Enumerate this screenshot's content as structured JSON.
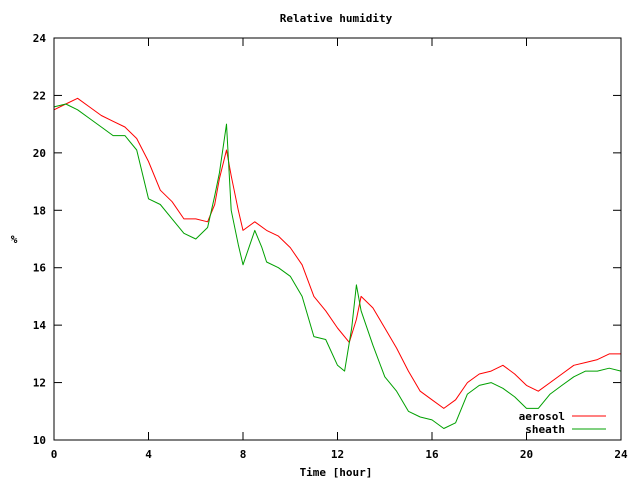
{
  "chart_data": {
    "type": "line",
    "title": "Relative humidity",
    "xlabel": "Time [hour]",
    "ylabel": "%",
    "xlim": [
      0,
      24
    ],
    "ylim": [
      10,
      24
    ],
    "x_ticks": [
      0,
      4,
      8,
      12,
      16,
      20,
      24
    ],
    "y_ticks": [
      10,
      12,
      14,
      16,
      18,
      20,
      22,
      24
    ],
    "grid": false,
    "legend_position": "bottom-right",
    "series": [
      {
        "name": "aerosol",
        "color": "#ff0000",
        "x": [
          0,
          0.5,
          1,
          1.5,
          2,
          2.5,
          3,
          3.5,
          4,
          4.5,
          5,
          5.5,
          6,
          6.5,
          6.8,
          7,
          7.3,
          7.5,
          7.8,
          8,
          8.5,
          9,
          9.5,
          10,
          10.5,
          11,
          11.5,
          12,
          12.5,
          12.8,
          13,
          13.5,
          14,
          14.5,
          15,
          15.5,
          16,
          16.5,
          17,
          17.5,
          18,
          18.5,
          19,
          19.5,
          20,
          20.5,
          21,
          21.5,
          22,
          22.5,
          23,
          23.5,
          24
        ],
        "y": [
          21.5,
          21.7,
          21.9,
          21.6,
          21.3,
          21.1,
          20.9,
          20.5,
          19.7,
          18.7,
          18.3,
          17.7,
          17.7,
          17.6,
          18.2,
          19.1,
          20.1,
          19.2,
          18.0,
          17.3,
          17.6,
          17.3,
          17.1,
          16.7,
          16.1,
          15.0,
          14.5,
          13.9,
          13.4,
          14.2,
          15.0,
          14.6,
          13.9,
          13.2,
          12.4,
          11.7,
          11.4,
          11.1,
          11.4,
          12.0,
          12.3,
          12.4,
          12.6,
          12.3,
          11.9,
          11.7,
          12.0,
          12.3,
          12.6,
          12.7,
          12.8,
          13.0,
          13.0
        ]
      },
      {
        "name": "sheath",
        "color": "#00a000",
        "x": [
          0,
          0.5,
          1,
          1.5,
          2,
          2.5,
          3,
          3.5,
          4,
          4.5,
          5,
          5.5,
          6,
          6.5,
          6.8,
          7,
          7.3,
          7.5,
          7.8,
          8,
          8.5,
          8.8,
          9,
          9.5,
          10,
          10.5,
          11,
          11.5,
          12,
          12.3,
          12.6,
          12.8,
          13,
          13.5,
          14,
          14.5,
          15,
          15.5,
          16,
          16.5,
          17,
          17.5,
          18,
          18.5,
          19,
          19.5,
          20,
          20.5,
          21,
          21.5,
          22,
          22.5,
          23,
          23.5,
          24
        ],
        "y": [
          21.6,
          21.7,
          21.5,
          21.2,
          20.9,
          20.6,
          20.6,
          20.1,
          18.4,
          18.2,
          17.7,
          17.2,
          17.0,
          17.4,
          18.5,
          19.3,
          21.0,
          18.0,
          16.8,
          16.1,
          17.3,
          16.7,
          16.2,
          16.0,
          15.7,
          15.0,
          13.6,
          13.5,
          12.6,
          12.4,
          13.9,
          15.4,
          14.5,
          13.3,
          12.2,
          11.7,
          11.0,
          10.8,
          10.7,
          10.4,
          10.6,
          11.6,
          11.9,
          12.0,
          11.8,
          11.5,
          11.1,
          11.1,
          11.6,
          11.9,
          12.2,
          12.4,
          12.4,
          12.5,
          12.4
        ]
      }
    ]
  }
}
